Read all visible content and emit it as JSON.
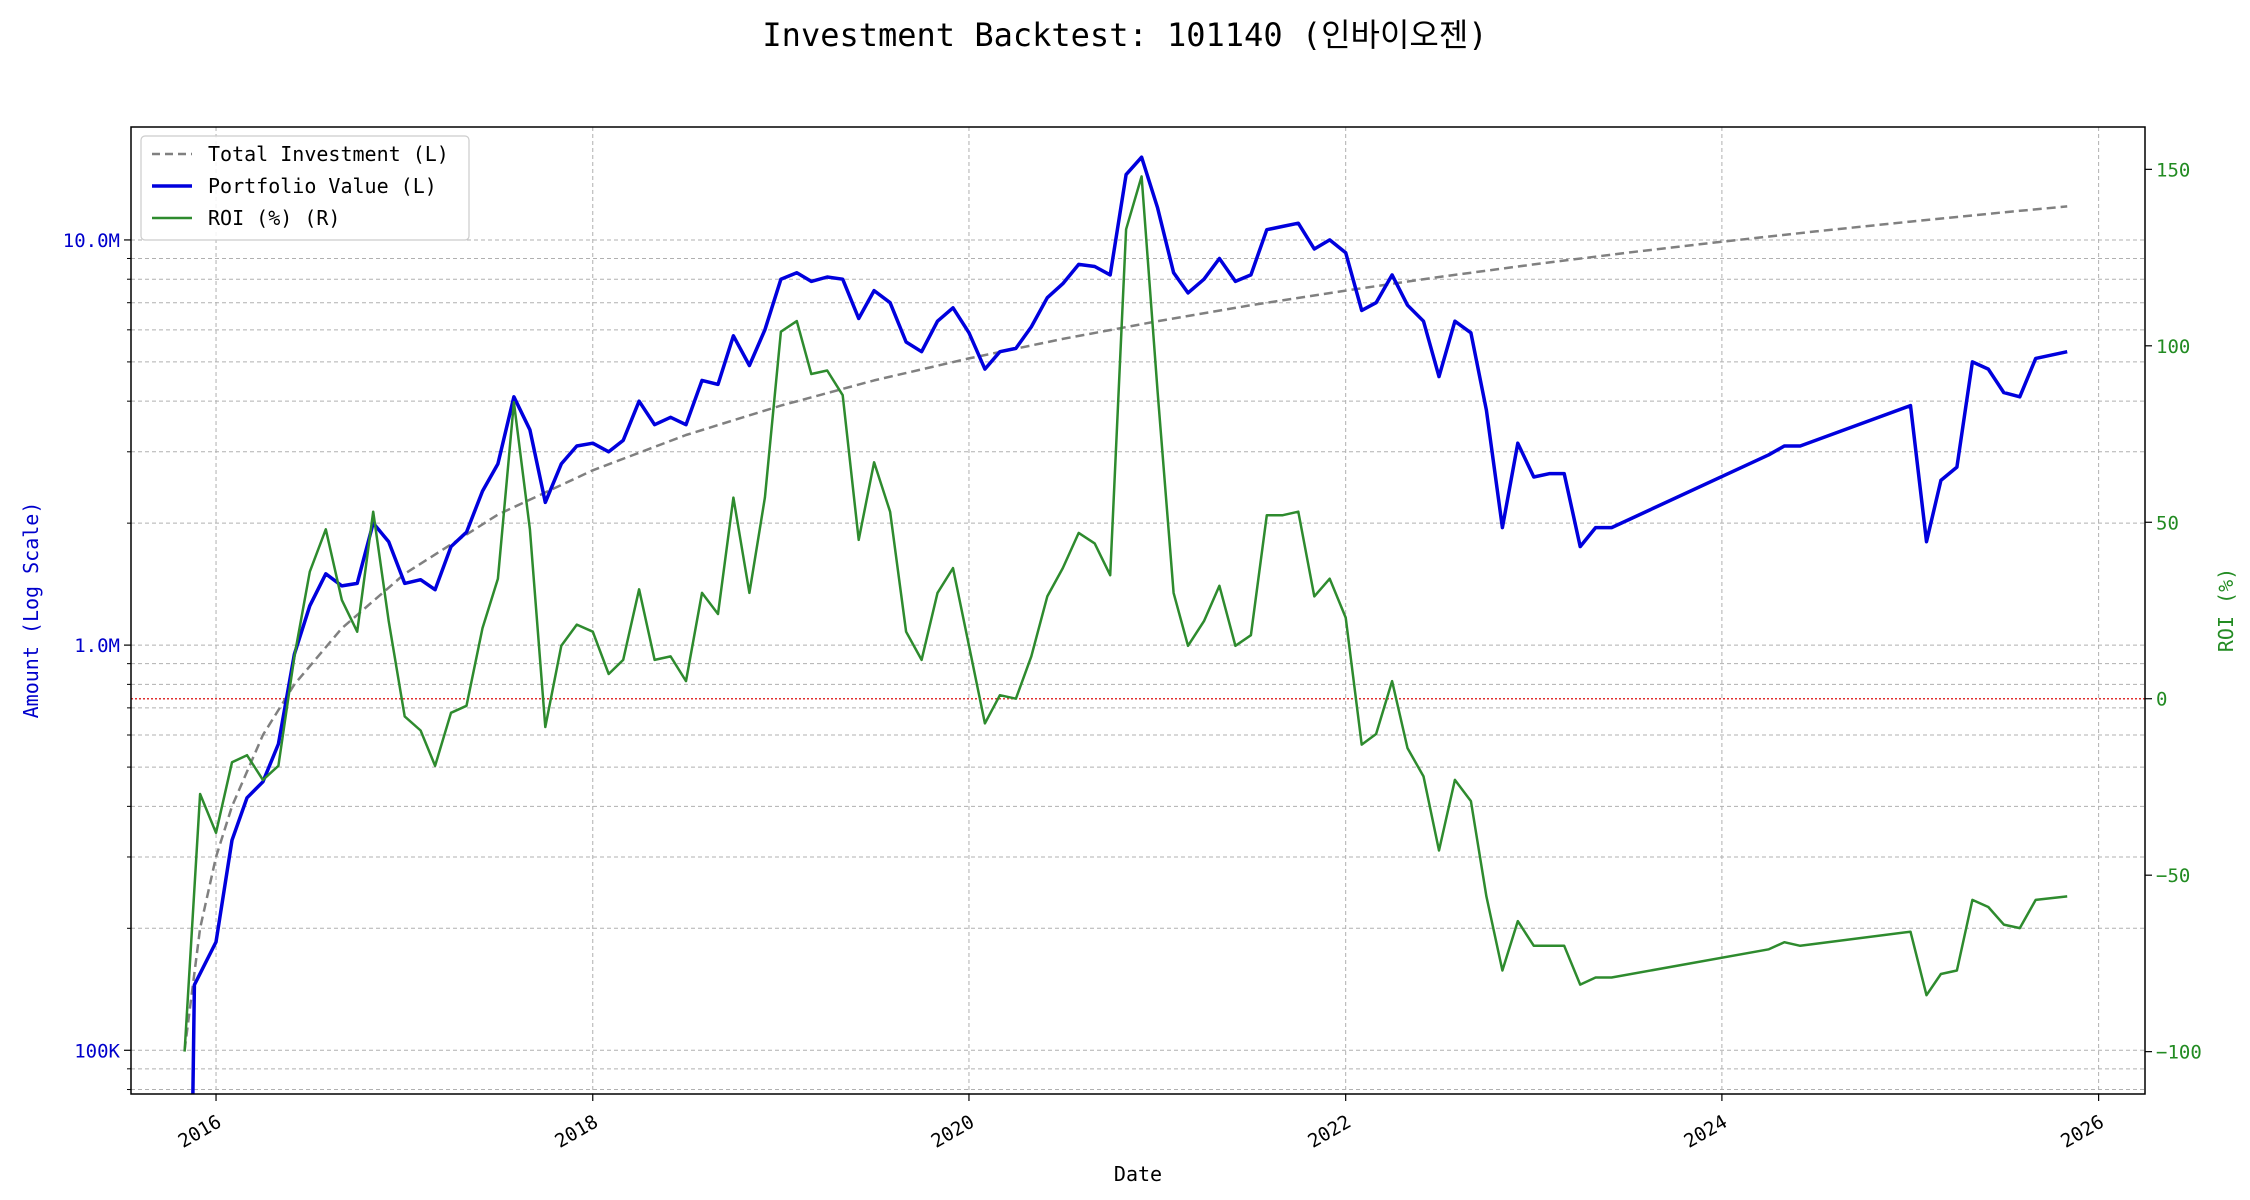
{
  "chart_data": {
    "type": "line",
    "title": "Investment Backtest: 101140 (인바이오젠)",
    "xlabel": "Date",
    "ylabel_left": "Amount (Log Scale)",
    "ylabel_right": "ROI (%)",
    "xlim": [
      "2015-07-20",
      "2026-04-01"
    ],
    "ylim_left": [
      78000,
      19000000
    ],
    "ylim_right": [
      -112,
      162
    ],
    "y_left_scale": "log",
    "x_ticks": [
      "2016",
      "2018",
      "2020",
      "2022",
      "2024",
      "2026"
    ],
    "y_left_ticks": [
      {
        "value": 100000,
        "label": "100K"
      },
      {
        "value": 1000000,
        "label": "1.0M"
      },
      {
        "value": 10000000,
        "label": "10.0M"
      }
    ],
    "y_right_ticks": [
      -100,
      -50,
      0,
      50,
      100,
      150
    ],
    "grid": true,
    "legend_position": "top-left",
    "reference_line": {
      "axis": "right",
      "value": 0,
      "color": "#e03030",
      "style": "dotted"
    },
    "colors": {
      "total_investment": "#808080",
      "portfolio_value": "#0000dd",
      "roi": "#2e8b2e",
      "left_axis": "#0000cc",
      "right_axis": "#228b22"
    },
    "series": [
      {
        "name": "Total Investment (L)",
        "axis": "left",
        "style": "dashed",
        "points": [
          [
            "2015-11-01",
            100000
          ],
          [
            "2015-12-01",
            200000
          ],
          [
            "2016-01-01",
            300000
          ],
          [
            "2016-02-01",
            400000
          ],
          [
            "2016-04-01",
            600000
          ],
          [
            "2016-06-01",
            800000
          ],
          [
            "2016-09-01",
            1100000
          ],
          [
            "2017-01-01",
            1500000
          ],
          [
            "2017-07-01",
            2100000
          ],
          [
            "2018-01-01",
            2700000
          ],
          [
            "2018-07-01",
            3300000
          ],
          [
            "2019-01-01",
            3900000
          ],
          [
            "2019-07-01",
            4500000
          ],
          [
            "2020-01-01",
            5100000
          ],
          [
            "2020-07-01",
            5700000
          ],
          [
            "2021-01-01",
            6300000
          ],
          [
            "2021-07-01",
            6900000
          ],
          [
            "2022-01-01",
            7500000
          ],
          [
            "2022-07-01",
            8100000
          ],
          [
            "2023-01-01",
            8700000
          ],
          [
            "2023-07-01",
            9300000
          ],
          [
            "2024-01-01",
            9900000
          ],
          [
            "2024-07-01",
            10500000
          ],
          [
            "2025-01-01",
            11100000
          ],
          [
            "2025-07-01",
            11700000
          ],
          [
            "2025-11-01",
            12100000
          ]
        ]
      },
      {
        "name": "Portfolio Value (L)",
        "axis": "left",
        "style": "solid",
        "points": [
          [
            "2015-11-15",
            50000
          ],
          [
            "2015-11-20",
            145000
          ],
          [
            "2016-01-01",
            185000
          ],
          [
            "2016-02-01",
            330000
          ],
          [
            "2016-03-01",
            420000
          ],
          [
            "2016-04-01",
            460000
          ],
          [
            "2016-05-01",
            570000
          ],
          [
            "2016-06-01",
            950000
          ],
          [
            "2016-07-01",
            1250000
          ],
          [
            "2016-08-01",
            1500000
          ],
          [
            "2016-09-01",
            1400000
          ],
          [
            "2016-10-01",
            1420000
          ],
          [
            "2016-11-01",
            2000000
          ],
          [
            "2016-12-01",
            1800000
          ],
          [
            "2017-01-01",
            1420000
          ],
          [
            "2017-02-01",
            1450000
          ],
          [
            "2017-03-01",
            1370000
          ],
          [
            "2017-04-01",
            1750000
          ],
          [
            "2017-05-01",
            1900000
          ],
          [
            "2017-06-01",
            2400000
          ],
          [
            "2017-07-01",
            2800000
          ],
          [
            "2017-08-01",
            4100000
          ],
          [
            "2017-09-01",
            3400000
          ],
          [
            "2017-10-01",
            2250000
          ],
          [
            "2017-11-01",
            2800000
          ],
          [
            "2017-12-01",
            3100000
          ],
          [
            "2018-01-01",
            3150000
          ],
          [
            "2018-02-01",
            3000000
          ],
          [
            "2018-03-01",
            3200000
          ],
          [
            "2018-04-01",
            4000000
          ],
          [
            "2018-05-01",
            3500000
          ],
          [
            "2018-06-01",
            3650000
          ],
          [
            "2018-07-01",
            3500000
          ],
          [
            "2018-08-01",
            4500000
          ],
          [
            "2018-09-01",
            4400000
          ],
          [
            "2018-10-01",
            5800000
          ],
          [
            "2018-11-01",
            4900000
          ],
          [
            "2018-12-01",
            6000000
          ],
          [
            "2019-01-01",
            8000000
          ],
          [
            "2019-02-01",
            8300000
          ],
          [
            "2019-03-01",
            7900000
          ],
          [
            "2019-04-01",
            8100000
          ],
          [
            "2019-05-01",
            8000000
          ],
          [
            "2019-06-01",
            6400000
          ],
          [
            "2019-07-01",
            7500000
          ],
          [
            "2019-08-01",
            7000000
          ],
          [
            "2019-09-01",
            5600000
          ],
          [
            "2019-10-01",
            5300000
          ],
          [
            "2019-11-01",
            6300000
          ],
          [
            "2019-12-01",
            6800000
          ],
          [
            "2020-01-01",
            5900000
          ],
          [
            "2020-02-01",
            4800000
          ],
          [
            "2020-03-01",
            5300000
          ],
          [
            "2020-04-01",
            5400000
          ],
          [
            "2020-05-01",
            6100000
          ],
          [
            "2020-06-01",
            7200000
          ],
          [
            "2020-07-01",
            7800000
          ],
          [
            "2020-08-01",
            8700000
          ],
          [
            "2020-09-01",
            8600000
          ],
          [
            "2020-10-01",
            8200000
          ],
          [
            "2020-11-01",
            14500000
          ],
          [
            "2020-12-01",
            16000000
          ],
          [
            "2021-01-01",
            12000000
          ],
          [
            "2021-02-01",
            8300000
          ],
          [
            "2021-03-01",
            7400000
          ],
          [
            "2021-04-01",
            8000000
          ],
          [
            "2021-05-01",
            9000000
          ],
          [
            "2021-06-01",
            7900000
          ],
          [
            "2021-07-01",
            8200000
          ],
          [
            "2021-08-01",
            10600000
          ],
          [
            "2021-09-01",
            10800000
          ],
          [
            "2021-10-01",
            11000000
          ],
          [
            "2021-11-01",
            9500000
          ],
          [
            "2021-12-01",
            10000000
          ],
          [
            "2022-01-01",
            9300000
          ],
          [
            "2022-02-01",
            6700000
          ],
          [
            "2022-03-01",
            7000000
          ],
          [
            "2022-04-01",
            8200000
          ],
          [
            "2022-05-01",
            6900000
          ],
          [
            "2022-06-01",
            6300000
          ],
          [
            "2022-07-01",
            4600000
          ],
          [
            "2022-08-01",
            6300000
          ],
          [
            "2022-09-01",
            5900000
          ],
          [
            "2022-10-01",
            3800000
          ],
          [
            "2022-11-01",
            1950000
          ],
          [
            "2022-12-01",
            3150000
          ],
          [
            "2023-01-01",
            2600000
          ],
          [
            "2023-02-01",
            2650000
          ],
          [
            "2023-03-01",
            2650000
          ],
          [
            "2023-04-01",
            1750000
          ],
          [
            "2023-05-01",
            1950000
          ],
          [
            "2023-06-01",
            1950000
          ],
          [
            "2024-04-01",
            2950000
          ],
          [
            "2024-05-01",
            3100000
          ],
          [
            "2024-06-01",
            3100000
          ],
          [
            "2025-01-01",
            3900000
          ],
          [
            "2025-02-01",
            1800000
          ],
          [
            "2025-03-01",
            2550000
          ],
          [
            "2025-04-01",
            2750000
          ],
          [
            "2025-05-01",
            5000000
          ],
          [
            "2025-06-01",
            4800000
          ],
          [
            "2025-07-01",
            4200000
          ],
          [
            "2025-08-01",
            4100000
          ],
          [
            "2025-09-01",
            5100000
          ],
          [
            "2025-11-01",
            5300000
          ]
        ]
      },
      {
        "name": "ROI (%) (R)",
        "axis": "right",
        "style": "solid",
        "points": [
          [
            "2015-11-01",
            -100
          ],
          [
            "2015-12-01",
            -27
          ],
          [
            "2016-01-01",
            -38
          ],
          [
            "2016-02-01",
            -18
          ],
          [
            "2016-03-01",
            -16
          ],
          [
            "2016-04-01",
            -23
          ],
          [
            "2016-05-01",
            -19
          ],
          [
            "2016-06-01",
            12
          ],
          [
            "2016-07-01",
            36
          ],
          [
            "2016-08-01",
            48
          ],
          [
            "2016-09-01",
            28
          ],
          [
            "2016-10-01",
            19
          ],
          [
            "2016-11-01",
            53
          ],
          [
            "2016-12-01",
            22
          ],
          [
            "2017-01-01",
            -5
          ],
          [
            "2017-02-01",
            -9
          ],
          [
            "2017-03-01",
            -19
          ],
          [
            "2017-04-01",
            -4
          ],
          [
            "2017-05-01",
            -2
          ],
          [
            "2017-06-01",
            20
          ],
          [
            "2017-07-01",
            34
          ],
          [
            "2017-08-01",
            84
          ],
          [
            "2017-09-01",
            48
          ],
          [
            "2017-10-01",
            -8
          ],
          [
            "2017-11-01",
            15
          ],
          [
            "2017-12-01",
            21
          ],
          [
            "2018-01-01",
            19
          ],
          [
            "2018-02-01",
            7
          ],
          [
            "2018-03-01",
            11
          ],
          [
            "2018-04-01",
            31
          ],
          [
            "2018-05-01",
            11
          ],
          [
            "2018-06-01",
            12
          ],
          [
            "2018-07-01",
            5
          ],
          [
            "2018-08-01",
            30
          ],
          [
            "2018-09-01",
            24
          ],
          [
            "2018-10-01",
            57
          ],
          [
            "2018-11-01",
            30
          ],
          [
            "2018-12-01",
            57
          ],
          [
            "2019-01-01",
            104
          ],
          [
            "2019-02-01",
            107
          ],
          [
            "2019-03-01",
            92
          ],
          [
            "2019-04-01",
            93
          ],
          [
            "2019-05-01",
            86
          ],
          [
            "2019-06-01",
            45
          ],
          [
            "2019-07-01",
            67
          ],
          [
            "2019-08-01",
            53
          ],
          [
            "2019-09-01",
            19
          ],
          [
            "2019-10-01",
            11
          ],
          [
            "2019-11-01",
            30
          ],
          [
            "2019-12-01",
            37
          ],
          [
            "2020-01-01",
            15
          ],
          [
            "2020-02-01",
            -7
          ],
          [
            "2020-03-01",
            1
          ],
          [
            "2020-04-01",
            0
          ],
          [
            "2020-05-01",
            12
          ],
          [
            "2020-06-01",
            29
          ],
          [
            "2020-07-01",
            37
          ],
          [
            "2020-08-01",
            47
          ],
          [
            "2020-09-01",
            44
          ],
          [
            "2020-10-01",
            35
          ],
          [
            "2020-11-01",
            133
          ],
          [
            "2020-12-01",
            148
          ],
          [
            "2021-01-01",
            87
          ],
          [
            "2021-02-01",
            30
          ],
          [
            "2021-03-01",
            15
          ],
          [
            "2021-04-01",
            22
          ],
          [
            "2021-05-01",
            32
          ],
          [
            "2021-06-01",
            15
          ],
          [
            "2021-07-01",
            18
          ],
          [
            "2021-08-01",
            52
          ],
          [
            "2021-09-01",
            52
          ],
          [
            "2021-10-01",
            53
          ],
          [
            "2021-11-01",
            29
          ],
          [
            "2021-12-01",
            34
          ],
          [
            "2022-01-01",
            23
          ],
          [
            "2022-02-01",
            -13
          ],
          [
            "2022-03-01",
            -10
          ],
          [
            "2022-04-01",
            5
          ],
          [
            "2022-05-01",
            -14
          ],
          [
            "2022-06-01",
            -22
          ],
          [
            "2022-07-01",
            -43
          ],
          [
            "2022-08-01",
            -23
          ],
          [
            "2022-09-01",
            -29
          ],
          [
            "2022-10-01",
            -56
          ],
          [
            "2022-11-01",
            -77
          ],
          [
            "2022-12-01",
            -63
          ],
          [
            "2023-01-01",
            -70
          ],
          [
            "2023-02-01",
            -70
          ],
          [
            "2023-03-01",
            -70
          ],
          [
            "2023-04-01",
            -81
          ],
          [
            "2023-05-01",
            -79
          ],
          [
            "2023-06-01",
            -79
          ],
          [
            "2024-04-01",
            -71
          ],
          [
            "2024-05-01",
            -69
          ],
          [
            "2024-06-01",
            -70
          ],
          [
            "2025-01-01",
            -66
          ],
          [
            "2025-02-01",
            -84
          ],
          [
            "2025-03-01",
            -78
          ],
          [
            "2025-04-01",
            -77
          ],
          [
            "2025-05-01",
            -57
          ],
          [
            "2025-06-01",
            -59
          ],
          [
            "2025-07-01",
            -64
          ],
          [
            "2025-08-01",
            -65
          ],
          [
            "2025-09-01",
            -57
          ],
          [
            "2025-11-01",
            -56
          ]
        ]
      }
    ]
  }
}
